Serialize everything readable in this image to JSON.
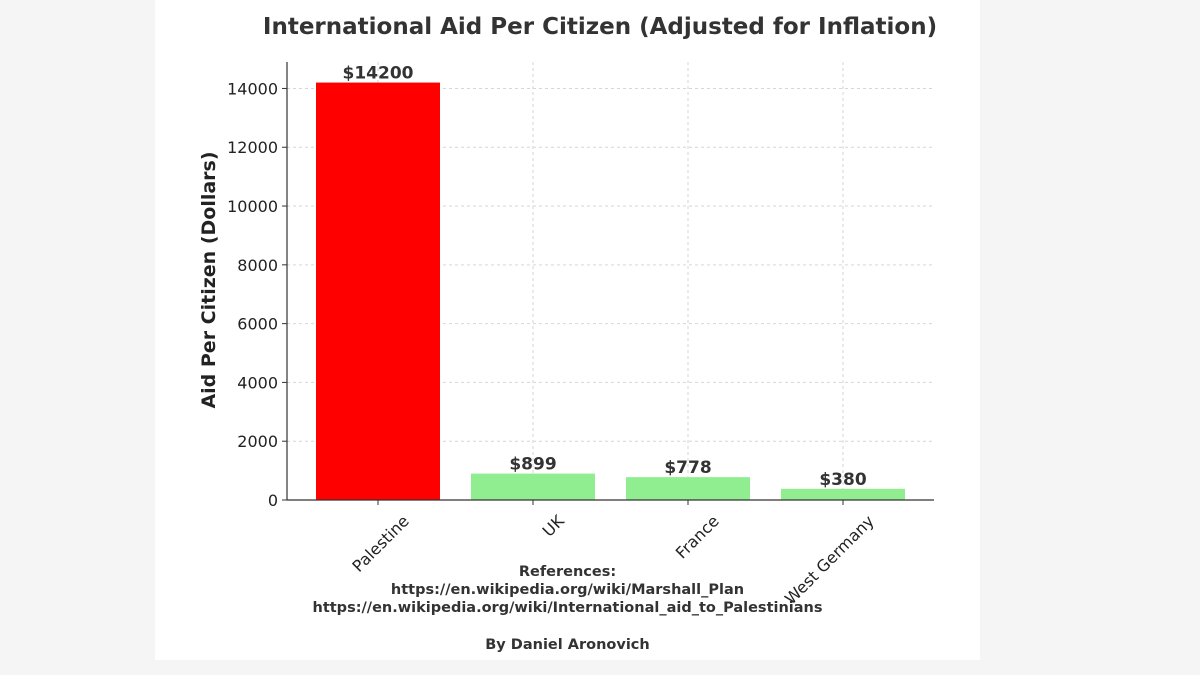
{
  "chart_data": {
    "type": "bar",
    "title": "International Aid Per Citizen (Adjusted for Inflation)",
    "xlabel": "",
    "ylabel": "Aid Per Citizen (Dollars)",
    "categories": [
      "Palestine",
      "UK",
      "France",
      "West Germany"
    ],
    "values": [
      14200,
      899,
      778,
      380
    ],
    "value_labels": [
      "$14200",
      "$899",
      "$778",
      "$380"
    ],
    "bar_colors": [
      "#ff0000",
      "#90ee90",
      "#90ee90",
      "#90ee90"
    ],
    "ylim": [
      0,
      14900
    ],
    "yticks": [
      0,
      2000,
      4000,
      6000,
      8000,
      10000,
      12000,
      14000
    ],
    "grid": true
  },
  "references": {
    "heading": "References:",
    "lines": [
      "https://en.wikipedia.org/wiki/Marshall_Plan",
      "https://en.wikipedia.org/wiki/International_aid_to_Palestinians"
    ]
  },
  "author": "By Daniel Aronovich"
}
